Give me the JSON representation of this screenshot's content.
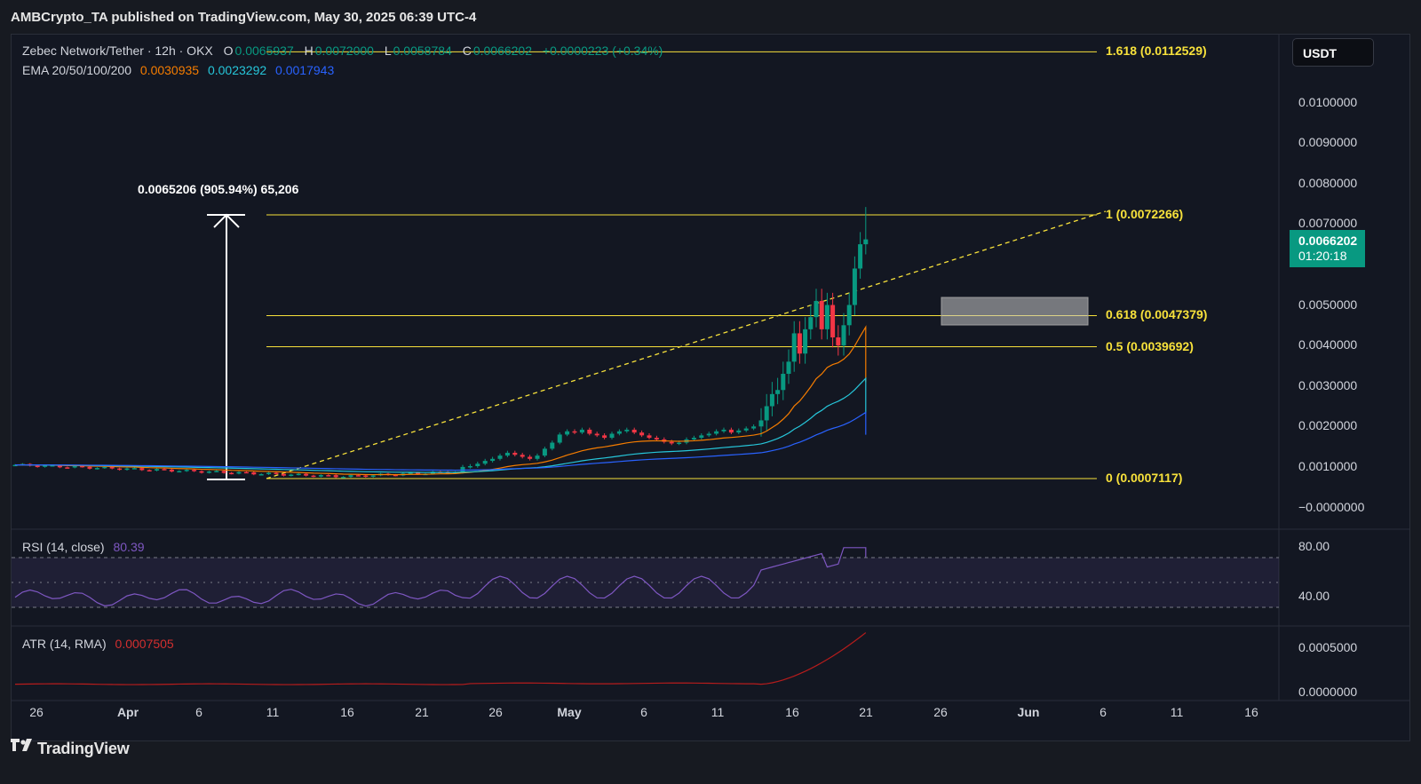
{
  "header": {
    "published": "AMBCrypto_TA published on TradingView.com, May 30, 2025 06:39 UTC-4"
  },
  "symbol": {
    "name": "Zebec Network/Tether · 12h · OKX",
    "o_label": "O",
    "o": "0.0065937",
    "h_label": "H",
    "h": "0.0072000",
    "l_label": "L",
    "l": "0.0058784",
    "c_label": "C",
    "c": "0.0066202",
    "change": "+0.0000223 (+0.34%)"
  },
  "ema": {
    "label": "EMA 20/50/100/200",
    "v20": "0.0030935",
    "v50": "0.0023292",
    "v100": "0.0017943",
    "color20": "#f57c00",
    "color50": "#26c6da",
    "color100": "#2962ff"
  },
  "currency_button": "USDT",
  "price_badge": {
    "price": "0.0066202",
    "countdown": "01:20:18",
    "color": "#089981"
  },
  "measure": {
    "label": "0.0065206 (905.94%) 65,206"
  },
  "fib": {
    "color": "#f7e13b",
    "levels": [
      {
        "label": "1.618 (0.0112529)",
        "value": 0.0112529
      },
      {
        "label": "1 (0.0072266)",
        "value": 0.0072266
      },
      {
        "label": "0.618 (0.0047379)",
        "value": 0.0047379
      },
      {
        "label": "0.5 (0.0039692)",
        "value": 0.0039692
      },
      {
        "label": "0 (0.0007117)",
        "value": 0.0007117
      }
    ]
  },
  "price_axis": [
    "0.0100000",
    "0.0090000",
    "0.0080000",
    "0.0070000",
    "0.0050000",
    "0.0040000",
    "0.0030000",
    "0.0020000",
    "0.0010000",
    "−0.0000000"
  ],
  "rsi": {
    "label": "RSI (14, close)",
    "value": "80.39",
    "axis": [
      "80.00",
      "40.00"
    ],
    "color": "#7e57c2"
  },
  "atr": {
    "label": "ATR (14, RMA)",
    "value": "0.0007505",
    "axis": [
      "0.0005000",
      "0.0000000"
    ],
    "color": "#b71c1c"
  },
  "time_axis": [
    {
      "label": "26",
      "bold": false
    },
    {
      "label": "Apr",
      "bold": true
    },
    {
      "label": "6",
      "bold": false
    },
    {
      "label": "11",
      "bold": false
    },
    {
      "label": "16",
      "bold": false
    },
    {
      "label": "21",
      "bold": false
    },
    {
      "label": "26",
      "bold": false
    },
    {
      "label": "May",
      "bold": true
    },
    {
      "label": "6",
      "bold": false
    },
    {
      "label": "11",
      "bold": false
    },
    {
      "label": "16",
      "bold": false
    },
    {
      "label": "21",
      "bold": false
    },
    {
      "label": "26",
      "bold": false
    },
    {
      "label": "Jun",
      "bold": true
    },
    {
      "label": "6",
      "bold": false
    },
    {
      "label": "11",
      "bold": false
    },
    {
      "label": "16",
      "bold": false
    }
  ],
  "footer": {
    "brand": "TradingView"
  },
  "chart_data": {
    "type": "candlestick",
    "title": "Zebec Network/Tether · 12h · OKX",
    "ylim": [
      0,
      0.0118
    ],
    "series": [
      {
        "name": "EMA 20",
        "last": 0.0030935
      },
      {
        "name": "EMA 50",
        "last": 0.0023292
      },
      {
        "name": "EMA 100",
        "last": 0.0017943
      }
    ],
    "last_close": 0.0066202,
    "high": 0.0072,
    "low": 0.0058784,
    "fib_range": [
      0.0007117,
      0.0072266
    ],
    "rsi_last": 80.39,
    "atr_last": 0.0007505,
    "grid": true,
    "legend": "top-left"
  }
}
